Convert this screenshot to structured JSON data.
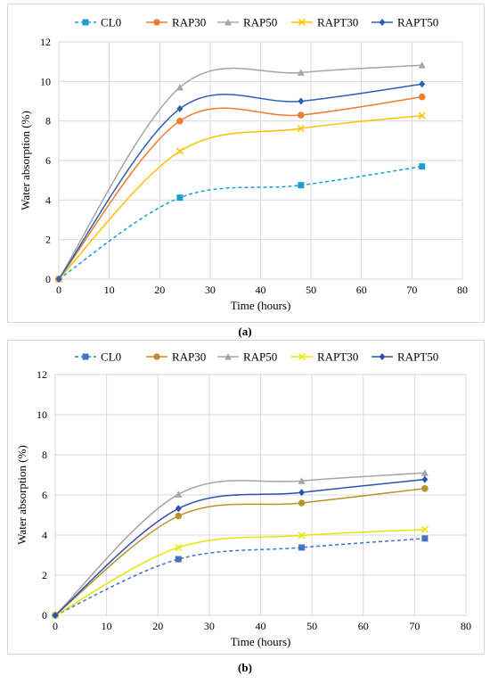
{
  "captions": [
    "(a)",
    "(b)"
  ],
  "chart_data": [
    {
      "type": "line",
      "title": "",
      "xlabel": "Time (hours)",
      "ylabel": "Water absorption (%)",
      "xlim": [
        0,
        80
      ],
      "ylim": [
        0,
        12
      ],
      "xticks": [
        0,
        10,
        20,
        30,
        40,
        50,
        60,
        70,
        80
      ],
      "yticks": [
        0,
        2,
        4,
        6,
        8,
        10,
        12
      ],
      "grid": true,
      "legend_position": "top",
      "x": [
        0,
        24,
        48,
        72
      ],
      "series": [
        {
          "name": "CL0",
          "color": "#1f9bd7",
          "marker": "square",
          "dashed": true,
          "values": [
            0,
            4.12,
            4.75,
            5.7
          ]
        },
        {
          "name": "RAP30",
          "color": "#ed7d31",
          "marker": "circle",
          "dashed": false,
          "values": [
            0,
            8.0,
            8.3,
            9.22
          ]
        },
        {
          "name": "RAP50",
          "color": "#a5a5a5",
          "marker": "triangle",
          "dashed": false,
          "values": [
            0,
            9.7,
            10.45,
            10.82
          ]
        },
        {
          "name": "RAPT30",
          "color": "#ffc000",
          "marker": "x",
          "dashed": false,
          "values": [
            0,
            6.47,
            7.62,
            8.27
          ]
        },
        {
          "name": "RAPT50",
          "color": "#2e5fb5",
          "marker": "diamond",
          "dashed": false,
          "values": [
            0,
            8.62,
            9.0,
            9.87
          ]
        }
      ]
    },
    {
      "type": "line",
      "title": "",
      "xlabel": "Time (hours)",
      "ylabel": "Water absorption (%)",
      "xlim": [
        0,
        80
      ],
      "ylim": [
        0,
        12
      ],
      "xticks": [
        0,
        10,
        20,
        30,
        40,
        50,
        60,
        70,
        80
      ],
      "yticks": [
        0,
        2,
        4,
        6,
        8,
        10,
        12
      ],
      "grid": true,
      "legend_position": "top",
      "x": [
        0,
        24,
        48,
        72
      ],
      "series": [
        {
          "name": "CL0",
          "color": "#4472c4",
          "marker": "square",
          "dashed": true,
          "values": [
            0,
            2.8,
            3.38,
            3.83
          ]
        },
        {
          "name": "RAP30",
          "color": "#b8922a",
          "marker": "circle",
          "dashed": false,
          "values": [
            0,
            4.95,
            5.6,
            6.32
          ]
        },
        {
          "name": "RAP50",
          "color": "#a5a5a5",
          "marker": "triangle",
          "dashed": false,
          "values": [
            0,
            6.03,
            6.7,
            7.1
          ]
        },
        {
          "name": "RAPT30",
          "color": "#e6e600",
          "marker": "x",
          "dashed": false,
          "values": [
            0,
            3.38,
            3.98,
            4.28
          ]
        },
        {
          "name": "RAPT50",
          "color": "#3050b0",
          "marker": "diamond",
          "dashed": false,
          "values": [
            0,
            5.32,
            6.12,
            6.77
          ]
        }
      ]
    }
  ]
}
